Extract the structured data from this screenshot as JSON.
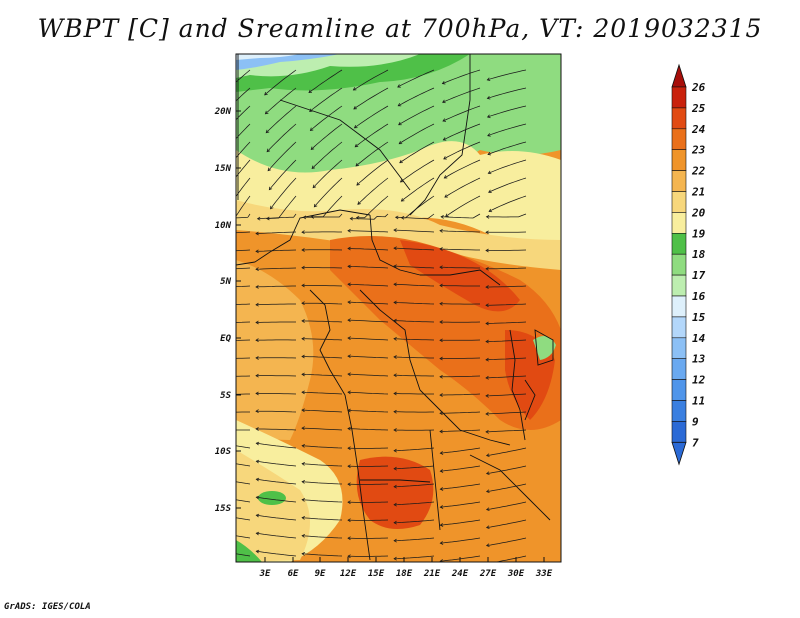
{
  "title": "WBPT [C] and Sreamline at 700hPa, VT: 2019032315",
  "footer": "GrADS: IGES/COLA",
  "map": {
    "lon_labels": [
      "3E",
      "6E",
      "9E",
      "12E",
      "15E",
      "18E",
      "21E",
      "24E",
      "27E",
      "30E",
      "33E"
    ],
    "lat_labels": [
      "20N",
      "15N",
      "10N",
      "5N",
      "EQ",
      "5S",
      "10S",
      "15S"
    ]
  },
  "colorbar": {
    "labels": [
      "7",
      "9",
      "11",
      "12",
      "13",
      "14",
      "15",
      "16",
      "17",
      "18",
      "19",
      "20",
      "21",
      "22",
      "23",
      "24",
      "25",
      "26"
    ],
    "colors": [
      "#2b6ad6",
      "#3a7fe0",
      "#4f95ea",
      "#6aa9f0",
      "#8cc0f5",
      "#b3d7fa",
      "#def0fb",
      "#bdeeb0",
      "#8fdc80",
      "#4fc048",
      "#f8ee9e",
      "#f7d77c",
      "#f4b550",
      "#ef942a",
      "#ea701a",
      "#e14a12",
      "#c9210c",
      "#a70e0a",
      "#b81f12"
    ]
  },
  "colors": {
    "streamline": "#1a1a1a",
    "border": "#111111"
  }
}
